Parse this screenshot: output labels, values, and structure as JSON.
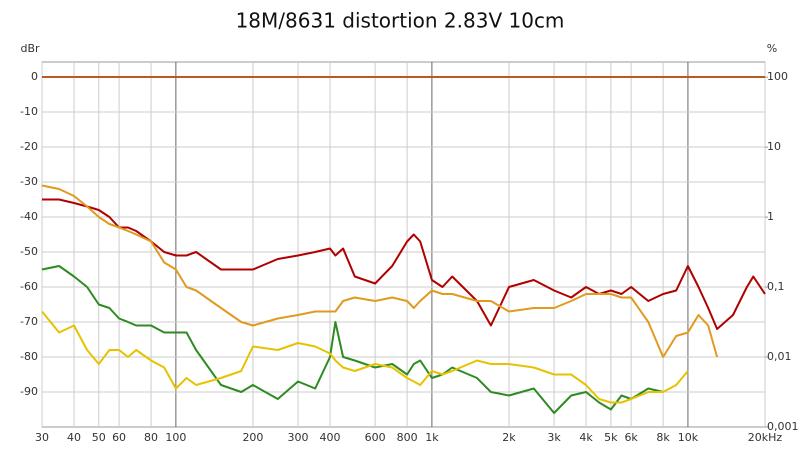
{
  "chart_data": {
    "type": "line",
    "title": "18M/8631 distortion 2.83V 10cm",
    "ylabel": "dBr",
    "y2label": "%",
    "xscale": "log",
    "y2scale": "log",
    "grid": true,
    "x": [
      30,
      35,
      40,
      45,
      50,
      55,
      60,
      65,
      70,
      80,
      90,
      100,
      110,
      120,
      150,
      180,
      200,
      250,
      300,
      350,
      400,
      420,
      450,
      500,
      600,
      700,
      800,
      850,
      900,
      1000,
      1100,
      1200,
      1500,
      1700,
      2000,
      2500,
      3000,
      3500,
      4000,
      4500,
      5000,
      5500,
      6000,
      7000,
      8000,
      9000,
      10000,
      11000,
      12000,
      13000,
      15000,
      17000,
      18000,
      20000
    ],
    "xlim": [
      30,
      20000
    ],
    "xticks": [
      30,
      40,
      50,
      60,
      80,
      100,
      200,
      300,
      400,
      600,
      800,
      {
        "value": 1000,
        "label": "1k"
      },
      {
        "value": 2000,
        "label": "2k"
      },
      {
        "value": 3000,
        "label": "3k"
      },
      {
        "value": 4000,
        "label": "4k"
      },
      {
        "value": 5000,
        "label": "5k"
      },
      {
        "value": 6000,
        "label": "6k"
      },
      {
        "value": 8000,
        "label": "8k"
      },
      {
        "value": 10000,
        "label": "10k"
      },
      {
        "value": 20000,
        "label": "20kHz"
      }
    ],
    "ylim": [
      -100,
      4.3
    ],
    "yticks": [
      0,
      -10,
      -20,
      -30,
      -40,
      -50,
      -60,
      -70,
      -80,
      -90
    ],
    "y2lim": [
      0.001,
      164.8
    ],
    "y2ticks": [
      100,
      10,
      1,
      {
        "value": 0.1,
        "label": "0,1"
      },
      {
        "value": 0.01,
        "label": "0,01"
      },
      {
        "value": 0.001,
        "label": "0,001"
      }
    ],
    "series": [
      {
        "color": "#b85c1e",
        "values": [
          0,
          0,
          0,
          0,
          0,
          0,
          0,
          0,
          0,
          0,
          0,
          0,
          0,
          0,
          0,
          0,
          0,
          0,
          0,
          0,
          0,
          0,
          0,
          0,
          0,
          0,
          0,
          0,
          0,
          0,
          0,
          0,
          0,
          0,
          0,
          0,
          0,
          0,
          0,
          0,
          0,
          0,
          0,
          0,
          0,
          0,
          0,
          0,
          0,
          0,
          0,
          0,
          0,
          0
        ]
      },
      {
        "color": "#b00000",
        "values": [
          -35,
          -35,
          -36,
          -37,
          -38,
          -40,
          -43,
          -43,
          -44,
          -47,
          -50,
          -51,
          -51,
          -50,
          -55,
          -55,
          -55,
          -52,
          -51,
          -50,
          -49,
          -51,
          -49,
          -57,
          -59,
          -54,
          -47,
          -45,
          -47,
          -58,
          -60,
          -57,
          -64,
          -71,
          -60,
          -58,
          -61,
          -63,
          -60,
          -62,
          -61,
          -62,
          -60,
          -64,
          -62,
          -61,
          -54,
          -60,
          -66,
          -72,
          -68,
          -60,
          -57,
          -62
        ]
      },
      {
        "color": "#e09a1e",
        "values": [
          -31,
          -32,
          -34,
          -37,
          -40,
          -42,
          -43,
          -44,
          -45,
          -47,
          -53,
          -55,
          -60,
          -61,
          -66,
          -70,
          -71,
          -69,
          -68,
          -67,
          -67,
          -67,
          -64,
          -63,
          -64,
          -63,
          -64,
          -66,
          -64,
          -61,
          -62,
          -62,
          -64,
          -64,
          -67,
          -66,
          -66,
          -64,
          -62,
          -62,
          -62,
          -63,
          -63,
          -70,
          -80,
          -74,
          -73,
          -68,
          -71,
          -80,
          null,
          null,
          null,
          null
        ]
      },
      {
        "color": "#2e8b22",
        "values": [
          -55,
          -54,
          -57,
          -60,
          -65,
          -66,
          -69,
          -70,
          -71,
          -71,
          -73,
          -73,
          -73,
          -78,
          -88,
          -90,
          -88,
          -92,
          -87,
          -89,
          -80,
          -70,
          -80,
          -81,
          -83,
          -82,
          -85,
          -82,
          -81,
          -86,
          -85,
          -83,
          -86,
          -90,
          -91,
          -89,
          -96,
          -91,
          -90,
          -93,
          -95,
          -91,
          -92,
          -89,
          -90,
          null,
          null,
          null,
          null,
          null,
          null,
          null,
          null,
          null
        ]
      },
      {
        "color": "#e6c200",
        "values": [
          -67,
          -73,
          -71,
          -78,
          -82,
          -78,
          -78,
          -80,
          -78,
          -81,
          -83,
          -89,
          -86,
          -88,
          -86,
          -84,
          -77,
          -78,
          -76,
          -77,
          -79,
          -81,
          -83,
          -84,
          -82,
          -83,
          -86,
          -87,
          -88,
          -84,
          -85,
          -84,
          -81,
          -82,
          -82,
          -83,
          -85,
          -85,
          -88,
          -92,
          -93,
          -93,
          -92,
          -90,
          -90,
          -88,
          -84,
          null,
          null,
          null,
          null,
          null,
          null,
          null
        ]
      }
    ]
  }
}
